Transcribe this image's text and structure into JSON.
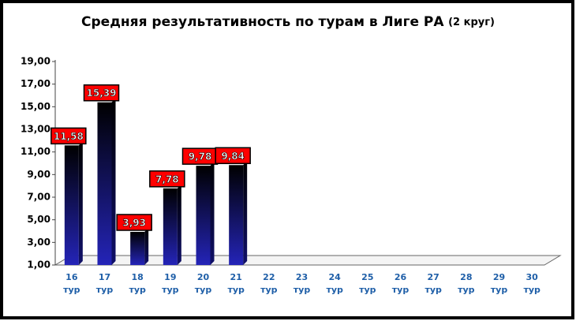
{
  "chart_data": {
    "type": "bar",
    "title": "Средняя результативность по турам в Лиге РА",
    "subtitle": "(2 круг)",
    "categories": [
      "16 тур",
      "17 тур",
      "18 тур",
      "19 тур",
      "20 тур",
      "21 тур",
      "22 тур",
      "23 тур",
      "24 тур",
      "25 тур",
      "26 тур",
      "27 тур",
      "28 тур",
      "29 тур",
      "30 тур"
    ],
    "values": [
      11.58,
      15.39,
      3.93,
      7.78,
      9.78,
      9.84,
      null,
      null,
      null,
      null,
      null,
      null,
      null,
      null,
      null
    ],
    "value_labels": [
      "11,58",
      "15,39",
      "3,93",
      "7,78",
      "9,78",
      "9,84",
      null,
      null,
      null,
      null,
      null,
      null,
      null,
      null,
      null
    ],
    "color": "#2424b8",
    "ylim": [
      1,
      19
    ],
    "yticks": [
      {
        "value": 1,
        "label": "1,00"
      },
      {
        "value": 3,
        "label": "3,00"
      },
      {
        "value": 5,
        "label": "5,00"
      },
      {
        "value": 7,
        "label": "7,00"
      },
      {
        "value": 9,
        "label": "9,00"
      },
      {
        "value": 11,
        "label": "11,00"
      },
      {
        "value": 13,
        "label": "13,00"
      },
      {
        "value": 15,
        "label": "15,00"
      },
      {
        "value": 17,
        "label": "17,00"
      },
      {
        "value": 19,
        "label": "19,00"
      }
    ],
    "grid": false
  }
}
